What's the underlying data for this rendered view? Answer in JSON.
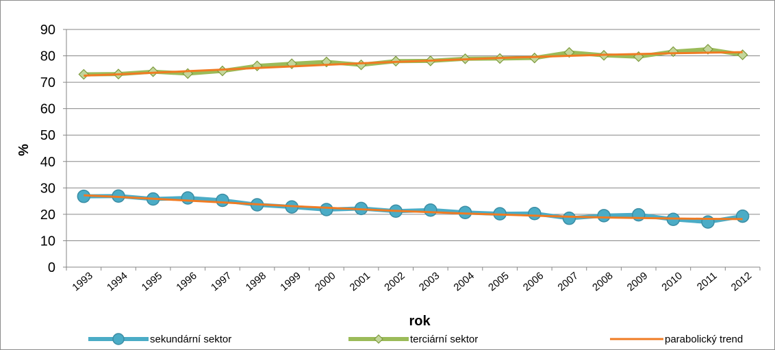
{
  "chart_data": {
    "type": "line",
    "title": "",
    "xlabel": "rok",
    "ylabel": "%",
    "ylim": [
      0,
      90
    ],
    "yticks": [
      "0",
      "10",
      "20",
      "30",
      "40",
      "50",
      "60",
      "70",
      "80",
      "90"
    ],
    "categories": [
      "1993",
      "1994",
      "1995",
      "1996",
      "1997",
      "1998",
      "1999",
      "2000",
      "2001",
      "2002",
      "2003",
      "2004",
      "2005",
      "2006",
      "2007",
      "2008",
      "2009",
      "2010",
      "2011",
      "2012"
    ],
    "grid": "horizontal",
    "legend_position": "bottom",
    "series": [
      {
        "name": "sekundární sektor",
        "marker": "circle",
        "color": "#4bacc6",
        "values": [
          26.8,
          26.9,
          25.8,
          26.2,
          25.3,
          23.6,
          22.8,
          21.8,
          22.2,
          21.2,
          21.6,
          20.7,
          20.2,
          20.3,
          18.5,
          19.5,
          19.8,
          18.1,
          17.1,
          19.3
        ]
      },
      {
        "name": "terciární sektor",
        "marker": "diamond",
        "color": "#9bbb59",
        "values": [
          73.0,
          73.1,
          74.0,
          73.3,
          74.3,
          76.2,
          77.0,
          77.7,
          76.6,
          78.0,
          78.1,
          78.9,
          79.0,
          79.2,
          81.3,
          80.2,
          79.7,
          81.6,
          82.5,
          80.4
        ]
      },
      {
        "name": "parabolický trend",
        "marker": "none",
        "color": "#f07b23",
        "trendline": true,
        "values": [
          27.2,
          26.6,
          25.9,
          25.2,
          24.5,
          23.8,
          23.1,
          22.5,
          21.9,
          21.3,
          20.8,
          20.3,
          19.9,
          19.5,
          19.1,
          18.8,
          18.6,
          18.4,
          18.3,
          18.2
        ],
        "values_upper": [
          72.5,
          73.0,
          73.6,
          74.2,
          74.8,
          75.4,
          76.0,
          76.6,
          77.2,
          77.7,
          78.2,
          78.7,
          79.2,
          79.6,
          80.0,
          80.4,
          80.7,
          81.0,
          81.2,
          81.4
        ]
      }
    ]
  }
}
